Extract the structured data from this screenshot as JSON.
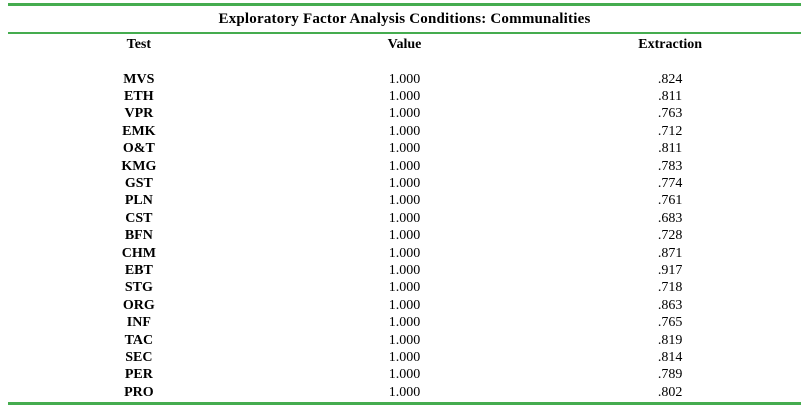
{
  "page": {
    "background": "#ffffff",
    "text_color": "#000000",
    "rule_color": "#45AC4F"
  },
  "table": {
    "title": "Exploratory Factor Analysis Conditions: Communalities",
    "headers": [
      "Test",
      "Value",
      "Extraction"
    ],
    "rows": [
      {
        "test": "MVS",
        "value": "1.000",
        "extraction": ".824"
      },
      {
        "test": "ETH",
        "value": "1.000",
        "extraction": ".811"
      },
      {
        "test": "VPR",
        "value": "1.000",
        "extraction": ".763"
      },
      {
        "test": "EMK",
        "value": "1.000",
        "extraction": ".712"
      },
      {
        "test": "O&T",
        "value": "1.000",
        "extraction": ".811"
      },
      {
        "test": "KMG",
        "value": "1.000",
        "extraction": ".783"
      },
      {
        "test": "GST",
        "value": "1.000",
        "extraction": ".774"
      },
      {
        "test": "PLN",
        "value": "1.000",
        "extraction": ".761"
      },
      {
        "test": "CST",
        "value": "1.000",
        "extraction": ".683"
      },
      {
        "test": "BFN",
        "value": "1.000",
        "extraction": ".728"
      },
      {
        "test": "CHM",
        "value": "1.000",
        "extraction": ".871"
      },
      {
        "test": "EBT",
        "value": "1.000",
        "extraction": ".917"
      },
      {
        "test": "STG",
        "value": "1.000",
        "extraction": ".718"
      },
      {
        "test": "ORG",
        "value": "1.000",
        "extraction": ".863"
      },
      {
        "test": "INF",
        "value": "1.000",
        "extraction": ".765"
      },
      {
        "test": "TAC",
        "value": "1.000",
        "extraction": ".819"
      },
      {
        "test": "SEC",
        "value": "1.000",
        "extraction": ".814"
      },
      {
        "test": "PER",
        "value": "1.000",
        "extraction": ".789"
      },
      {
        "test": "PRO",
        "value": "1.000",
        "extraction": ".802"
      }
    ]
  }
}
